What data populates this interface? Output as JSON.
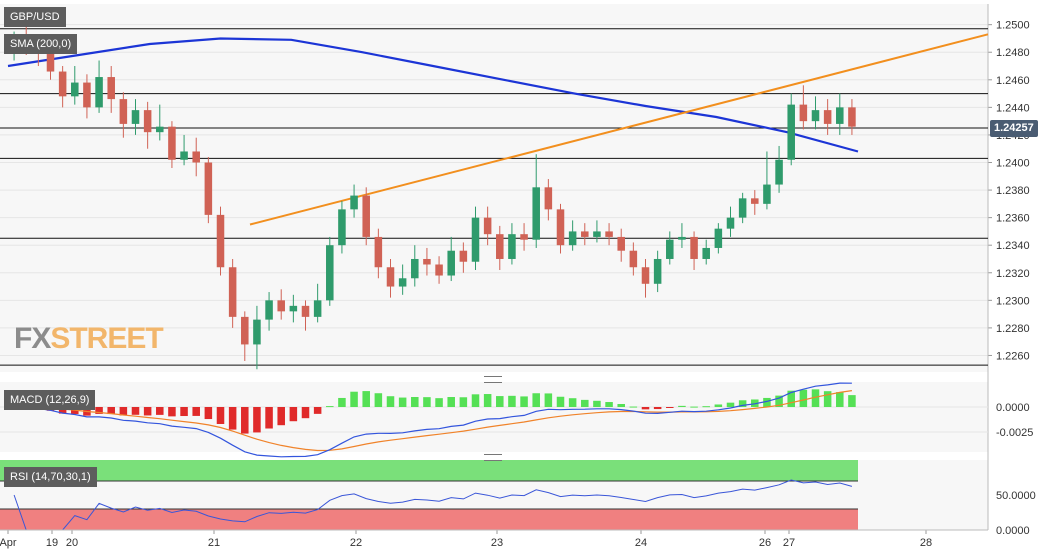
{
  "chart_data": [
    {
      "type": "candlestick",
      "symbol": "GBP/USD",
      "indicator_label": "SMA (200,0)",
      "last_price": "1.24257",
      "y_ticks": [
        "1.2500",
        "1.2480",
        "1.2460",
        "1.2440",
        "1.2420",
        "1.2400",
        "1.2380",
        "1.2360",
        "1.2340",
        "1.2320",
        "1.2300",
        "1.2280",
        "1.2260"
      ],
      "ylim": [
        1.2248,
        1.2515
      ],
      "x_ticks": [
        "Apr",
        "19",
        "20",
        "21",
        "22",
        "23",
        "24",
        "26",
        "27",
        "28"
      ],
      "horizontal_levels": [
        1.2497,
        1.245,
        1.2425,
        1.2403,
        1.2345,
        1.2253
      ],
      "trendline": {
        "x": [
          0,
          1
        ],
        "y": [
          1.2355,
          1.2493
        ]
      },
      "sma_200": [
        1.247,
        1.2478,
        1.2486,
        1.249,
        1.2489,
        1.248,
        1.247,
        1.246,
        1.245,
        1.2441,
        1.2433,
        1.2422,
        1.2408
      ],
      "candles": [
        [
          1.248,
          1.2493,
          1.2495,
          1.2474
        ],
        [
          1.2493,
          1.2486,
          1.25,
          1.2478
        ],
        [
          1.2486,
          1.2479,
          1.2492,
          1.247
        ],
        [
          1.2479,
          1.2466,
          1.2484,
          1.246
        ],
        [
          1.2466,
          1.2448,
          1.247,
          1.244
        ],
        [
          1.2448,
          1.2458,
          1.247,
          1.2442
        ],
        [
          1.2458,
          1.244,
          1.2464,
          1.2432
        ],
        [
          1.244,
          1.2462,
          1.2474,
          1.2436
        ],
        [
          1.2462,
          1.2446,
          1.247,
          1.2436
        ],
        [
          1.2446,
          1.2428,
          1.2451,
          1.2418
        ],
        [
          1.2428,
          1.2438,
          1.2446,
          1.242
        ],
        [
          1.2438,
          1.2422,
          1.2444,
          1.241
        ],
        [
          1.2422,
          1.2426,
          1.2442,
          1.2416
        ],
        [
          1.2426,
          1.2402,
          1.243,
          1.2396
        ],
        [
          1.2402,
          1.2408,
          1.242,
          1.2398
        ],
        [
          1.2408,
          1.24,
          1.2418,
          1.239
        ],
        [
          1.24,
          1.2362,
          1.2404,
          1.2356
        ],
        [
          1.2362,
          1.2324,
          1.2368,
          1.2318
        ],
        [
          1.2324,
          1.2288,
          1.233,
          1.228
        ],
        [
          1.2288,
          1.2268,
          1.2292,
          1.2256
        ],
        [
          1.2268,
          1.2286,
          1.2296,
          1.225
        ],
        [
          1.2286,
          1.23,
          1.2306,
          1.2278
        ],
        [
          1.23,
          1.2292,
          1.2308,
          1.2286
        ],
        [
          1.2292,
          1.2296,
          1.2304,
          1.2284
        ],
        [
          1.2296,
          1.2288,
          1.23,
          1.2278
        ],
        [
          1.2288,
          1.23,
          1.2312,
          1.2284
        ],
        [
          1.23,
          1.234,
          1.2346,
          1.2296
        ],
        [
          1.234,
          1.2366,
          1.2372,
          1.2334
        ],
        [
          1.2366,
          1.2376,
          1.2384,
          1.236
        ],
        [
          1.2376,
          1.2346,
          1.2382,
          1.234
        ],
        [
          1.2346,
          1.2324,
          1.2352,
          1.2316
        ],
        [
          1.2324,
          1.231,
          1.233,
          1.2302
        ],
        [
          1.231,
          1.2316,
          1.2326,
          1.2304
        ],
        [
          1.2316,
          1.233,
          1.234,
          1.231
        ],
        [
          1.233,
          1.2326,
          1.2338,
          1.2318
        ],
        [
          1.2326,
          1.2318,
          1.2332,
          1.2312
        ],
        [
          1.2318,
          1.2336,
          1.2346,
          1.2314
        ],
        [
          1.2336,
          1.2328,
          1.2342,
          1.232
        ],
        [
          1.2328,
          1.236,
          1.2368,
          1.2322
        ],
        [
          1.236,
          1.2348,
          1.2368,
          1.234
        ],
        [
          1.2348,
          1.233,
          1.2354,
          1.2322
        ],
        [
          1.233,
          1.2348,
          1.2356,
          1.2326
        ],
        [
          1.2348,
          1.2344,
          1.2356,
          1.2336
        ],
        [
          1.2344,
          1.2382,
          1.2406,
          1.2338
        ],
        [
          1.2382,
          1.2366,
          1.2388,
          1.2358
        ],
        [
          1.2366,
          1.234,
          1.237,
          1.2334
        ],
        [
          1.234,
          1.235,
          1.2358,
          1.2336
        ],
        [
          1.235,
          1.2346,
          1.2356,
          1.234
        ],
        [
          1.2346,
          1.235,
          1.2358,
          1.2342
        ],
        [
          1.235,
          1.2346,
          1.2356,
          1.234
        ],
        [
          1.2346,
          1.2336,
          1.2352,
          1.2328
        ],
        [
          1.2336,
          1.2324,
          1.2342,
          1.2318
        ],
        [
          1.2324,
          1.2312,
          1.233,
          1.2302
        ],
        [
          1.2312,
          1.233,
          1.2336,
          1.2306
        ],
        [
          1.233,
          1.2344,
          1.235,
          1.2326
        ],
        [
          1.2344,
          1.2346,
          1.2356,
          1.2338
        ],
        [
          1.2346,
          1.233,
          1.235,
          1.2322
        ],
        [
          1.233,
          1.2338,
          1.2344,
          1.2326
        ],
        [
          1.2338,
          1.2352,
          1.2356,
          1.2334
        ],
        [
          1.2352,
          1.236,
          1.2368,
          1.2346
        ],
        [
          1.236,
          1.2374,
          1.2378,
          1.2356
        ],
        [
          1.2374,
          1.237,
          1.238,
          1.2362
        ],
        [
          1.237,
          1.2384,
          1.2408,
          1.2366
        ],
        [
          1.2384,
          1.2402,
          1.2412,
          1.2378
        ],
        [
          1.2402,
          1.2442,
          1.245,
          1.2398
        ],
        [
          1.2442,
          1.243,
          1.2456,
          1.2424
        ],
        [
          1.243,
          1.2438,
          1.2448,
          1.2424
        ],
        [
          1.2438,
          1.2428,
          1.2446,
          1.242
        ],
        [
          1.2428,
          1.244,
          1.245,
          1.242
        ],
        [
          1.244,
          1.2426,
          1.2446,
          1.242
        ]
      ]
    },
    {
      "type": "macd",
      "label": "MACD (12,26,9)",
      "y_ticks": [
        "0.0000",
        "-0.0025"
      ],
      "ylim": [
        -0.0045,
        0.0025
      ],
      "zero_level": 0.0
    },
    {
      "type": "rsi",
      "label": "RSI (14,70,30,1)",
      "y_ticks": [
        "50.0000",
        "0.0000"
      ],
      "ylim": [
        0,
        100
      ],
      "overbought": 70,
      "oversold": 30
    }
  ],
  "branding": {
    "fx": "FX",
    "street": "STREET"
  },
  "colors": {
    "up": "#2f9b6c",
    "down": "#d06255",
    "sma": "#1c35d6",
    "trend": "#f28f1e",
    "macd": "#3355dd",
    "signal": "#f0832a",
    "hist_up": "#55e055",
    "hist_down": "#e02a2a",
    "rsi": "#3a56d8",
    "ob_zone": "#7ae07a",
    "os_zone": "#f08080"
  }
}
